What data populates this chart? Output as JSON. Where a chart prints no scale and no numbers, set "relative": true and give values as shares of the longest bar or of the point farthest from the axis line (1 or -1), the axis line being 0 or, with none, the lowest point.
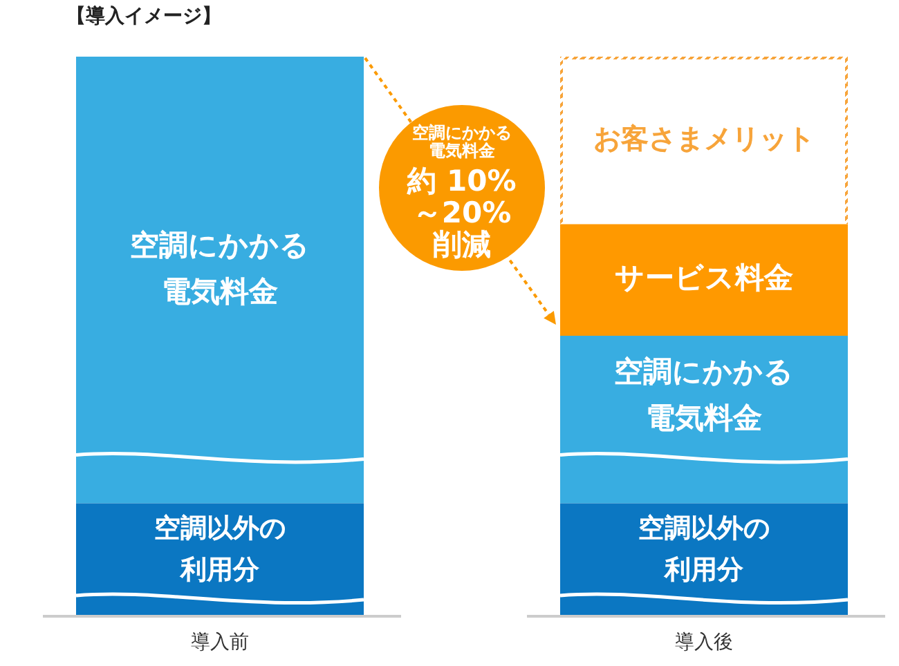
{
  "chart_data": {
    "type": "bar",
    "title": "【導入イメージ】",
    "categories": [
      "導入前",
      "導入後"
    ],
    "stacked": true,
    "relative": true,
    "legend": false,
    "grid": false,
    "series": [
      {
        "name": "空調以外の利用分",
        "color": "#0b77c2",
        "values": [
          0.2,
          0.2
        ]
      },
      {
        "name": "空調にかかる電気料金",
        "color": "#38ade1",
        "values": [
          0.8,
          0.3
        ]
      },
      {
        "name": "サービス料金",
        "color": "#ff9900",
        "values": [
          null,
          0.2
        ]
      },
      {
        "name": "お客さまメリット",
        "color": "#f7a43a",
        "line_style": "dotted",
        "values": [
          null,
          0.3
        ]
      }
    ],
    "annotations": [
      "空調にかかる電気料金約 10%～20%削減"
    ]
  }
}
